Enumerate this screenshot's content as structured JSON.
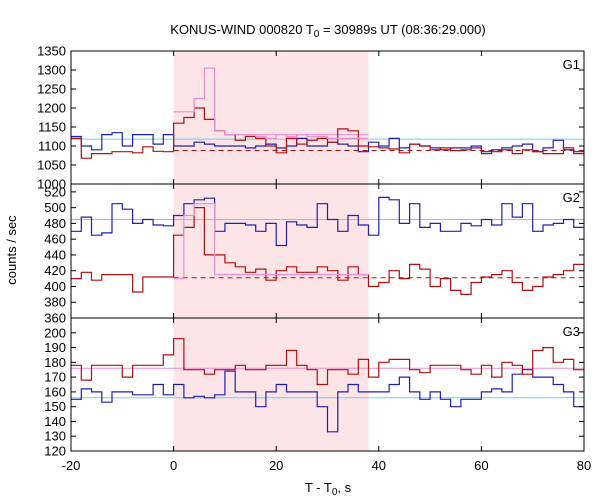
{
  "chart_data": {
    "type": "line",
    "title": {
      "main": "KONUS-WIND 000820 T",
      "sub": "0",
      "rest": " = 30989s UT (08:36:29.000)"
    },
    "xlabel": {
      "main": "T - T",
      "sub": "0",
      "rest": ", s"
    },
    "ylabel": "counts / sec",
    "xlim": [
      -20,
      80
    ],
    "xticks": [
      "-20",
      "0",
      "20",
      "40",
      "60",
      "80"
    ],
    "highlight_interval": [
      0,
      38
    ],
    "colors": {
      "blue": "#2020b0",
      "red": "#b01010",
      "pink": "#e890d0",
      "cyan": "#70d0e8",
      "highlight": "#fde4e6"
    },
    "panels": [
      {
        "label": "G1",
        "ylim": [
          1000,
          1350
        ],
        "yticks": [
          "1000",
          "1050",
          "1100",
          "1150",
          "1200",
          "1250",
          "1300",
          "1350"
        ],
        "bin_edges": [
          -20,
          -18,
          -16,
          -14,
          -12,
          -10,
          -8,
          -6,
          -4,
          -2,
          0,
          2,
          4,
          6,
          8,
          10,
          12,
          14,
          16,
          18,
          20,
          22,
          24,
          26,
          28,
          30,
          32,
          34,
          36,
          38,
          40,
          42,
          44,
          46,
          48,
          50,
          52,
          54,
          56,
          58,
          60,
          62,
          64,
          66,
          68,
          70,
          72,
          74,
          76,
          78,
          80
        ],
        "series": [
          {
            "color": "blue",
            "values": [
              1125,
              1100,
              1090,
              1130,
              1135,
              1100,
              1130,
              1130,
              1105,
              1130,
              1100,
              1100,
              1110,
              1105,
              1100,
              1100,
              1100,
              1095,
              1100,
              1105,
              1095,
              1100,
              1120,
              1100,
              1100,
              1110,
              1105,
              1100,
              1085,
              1110,
              1100,
              1120,
              1095,
              1105,
              1100,
              1095,
              1090,
              1095,
              1095,
              1100,
              1085,
              1090,
              1095,
              1100,
              1105,
              1085,
              1095,
              1115,
              1090,
              1085
            ]
          },
          {
            "color": "red",
            "values": [
              1120,
              1068,
              1080,
              1080,
              1085,
              1085,
              1082,
              1098,
              1086,
              1085,
              1160,
              1175,
              1200,
              1170,
              1140,
              1130,
              1115,
              1125,
              1120,
              1100,
              1082,
              1120,
              1105,
              1115,
              1120,
              1110,
              1145,
              1140,
              1100,
              1098,
              1095,
              1092,
              1082,
              1105,
              1100,
              1090,
              1095,
              1088,
              1090,
              1095,
              1080,
              1085,
              1090,
              1080,
              1090,
              1085,
              1080,
              1080,
              1095,
              1080
            ]
          },
          {
            "color": "pink",
            "values": [
              null,
              null,
              null,
              null,
              null,
              null,
              null,
              null,
              null,
              null,
              1190,
              1190,
              1225,
              1305,
              1140,
              1130,
              1130,
              1130,
              1125,
              1120,
              1130,
              1125,
              1130,
              1125,
              1125,
              1120,
              1120,
              1120,
              1120
            ]
          }
        ],
        "hlines": [
          {
            "color": "cyan",
            "y": 1118,
            "x0": -20,
            "x1": 80,
            "dash": "none"
          },
          {
            "color": "red",
            "y": 1088,
            "x0": 0,
            "x1": 80,
            "dash": "dash"
          },
          {
            "color": "pink",
            "y": 1130,
            "x0": 10,
            "x1": 38,
            "dash": "none"
          }
        ]
      },
      {
        "label": "G2",
        "ylim": [
          360,
          530
        ],
        "yticks": [
          "360",
          "380",
          "400",
          "420",
          "440",
          "460",
          "480",
          "500",
          "520"
        ],
        "bin_edges": [
          -20,
          -18,
          -16,
          -14,
          -12,
          -10,
          -8,
          -6,
          -4,
          -2,
          0,
          2,
          4,
          6,
          8,
          10,
          12,
          14,
          16,
          18,
          20,
          22,
          24,
          26,
          28,
          30,
          32,
          34,
          36,
          38,
          40,
          42,
          44,
          46,
          48,
          50,
          52,
          54,
          56,
          58,
          60,
          62,
          64,
          66,
          68,
          70,
          72,
          74,
          76,
          78,
          80
        ],
        "series": [
          {
            "color": "blue",
            "values": [
              470,
              488,
              465,
              468,
              505,
              498,
              480,
              485,
              478,
              477,
              490,
              505,
              510,
              512,
              470,
              480,
              480,
              478,
              470,
              480,
              452,
              482,
              478,
              475,
              505,
              485,
              470,
              490,
              478,
              465,
              513,
              510,
              480,
              505,
              475,
              480,
              470,
              470,
              480,
              477,
              485,
              478,
              505,
              488,
              505,
              470,
              478,
              480,
              485,
              475
            ]
          },
          {
            "color": "red",
            "values": [
              410,
              418,
              408,
              415,
              415,
              415,
              393,
              412,
              412,
              412,
              465,
              475,
              500,
              440,
              440,
              430,
              425,
              418,
              422,
              408,
              420,
              425,
              418,
              418,
              425,
              420,
              408,
              425,
              415,
              400,
              405,
              420,
              410,
              428,
              422,
              400,
              410,
              395,
              390,
              405,
              412,
              415,
              420,
              405,
              395,
              400,
              412,
              415,
              420,
              428
            ]
          },
          {
            "color": "pink",
            "values": [
              null,
              null,
              null,
              null,
              null,
              null,
              null,
              null,
              null,
              null,
              410,
              490,
              505,
              505,
              415,
              415,
              415,
              415,
              415,
              415,
              415,
              415,
              415,
              415,
              415,
              415,
              415,
              415,
              415
            ]
          }
        ],
        "hlines": [
          {
            "color": "cyan",
            "y": 485,
            "x0": -20,
            "x1": 80,
            "dash": "none"
          },
          {
            "color": "red",
            "y": 411,
            "x0": 0,
            "x1": 80,
            "dash": "dash"
          },
          {
            "color": "pink",
            "y": 415,
            "x0": 10,
            "x1": 38,
            "dash": "none"
          }
        ]
      },
      {
        "label": "G3",
        "ylim": [
          120,
          210
        ],
        "yticks": [
          "120",
          "130",
          "140",
          "150",
          "160",
          "170",
          "180",
          "190",
          "200"
        ],
        "bin_edges": [
          -20,
          -18,
          -16,
          -14,
          -12,
          -10,
          -8,
          -6,
          -4,
          -2,
          0,
          2,
          4,
          6,
          8,
          10,
          12,
          14,
          16,
          18,
          20,
          22,
          24,
          26,
          28,
          30,
          32,
          34,
          36,
          38,
          40,
          42,
          44,
          46,
          48,
          50,
          52,
          54,
          56,
          58,
          60,
          62,
          64,
          66,
          68,
          70,
          72,
          74,
          76,
          78,
          80
        ],
        "series": [
          {
            "color": "blue",
            "values": [
              155,
              162,
              160,
              153,
              160,
              160,
              158,
              158,
              165,
              158,
              165,
              156,
              157,
              156,
              158,
              174,
              160,
              160,
              150,
              160,
              165,
              160,
              160,
              160,
              150,
              133,
              160,
              165,
              160,
              160,
              160,
              165,
              170,
              160,
              155,
              160,
              155,
              150,
              155,
              155,
              160,
              162,
              160,
              172,
              175,
              170,
              170,
              165,
              160,
              150
            ]
          },
          {
            "color": "red",
            "values": [
              178,
              168,
              178,
              178,
              178,
              170,
              178,
              178,
              178,
              185,
              196,
              175,
              175,
              172,
              175,
              175,
              178,
              175,
              175,
              178,
              178,
              188,
              178,
              175,
              165,
              175,
              175,
              172,
              182,
              170,
              180,
              182,
              182,
              175,
              173,
              178,
              178,
              178,
              175,
              172,
              178,
              170,
              180,
              178,
              172,
              188,
              190,
              180,
              182,
              175
            ]
          }
        ],
        "hlines": [
          {
            "color": "cyan",
            "y": 156,
            "x0": -20,
            "x1": 80,
            "dash": "none"
          },
          {
            "color": "pink",
            "y": 176,
            "x0": -20,
            "x1": 80,
            "dash": "none"
          }
        ]
      }
    ]
  }
}
